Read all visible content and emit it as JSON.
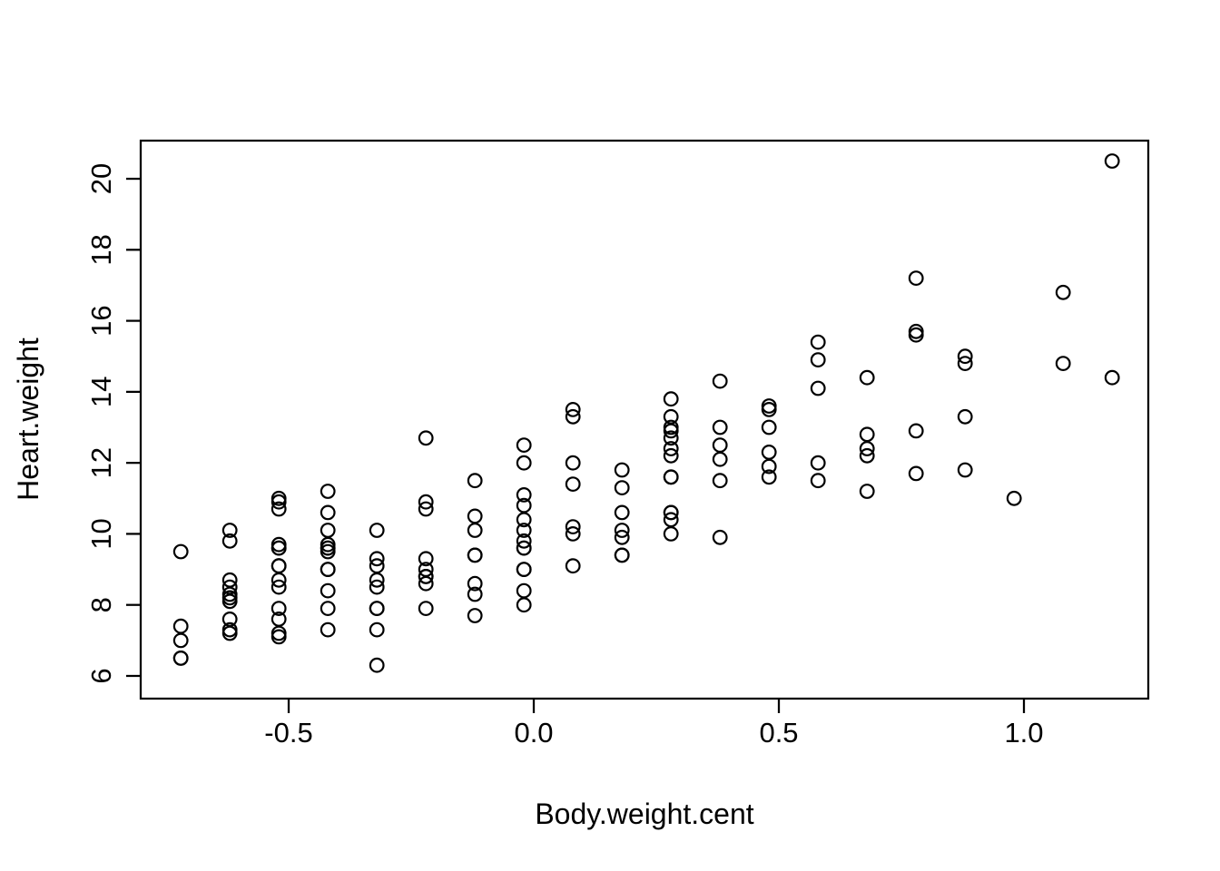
{
  "figure": {
    "background_color": "#ffffff",
    "foreground_color": "#000000"
  },
  "chart_data": {
    "type": "scatter",
    "title": "",
    "xlabel": "Body.weight.cent",
    "ylabel": "Heart.weight",
    "marker": "open-circle",
    "grid": false,
    "legend": "none",
    "xlim": [
      -0.8019,
      1.2537
    ],
    "ylim": [
      5.361,
      21.074
    ],
    "x_ticks": [
      -0.5,
      0.0,
      0.5,
      1.0
    ],
    "x_tick_labels": [
      "-0.5",
      "0.0",
      "0.5",
      "1.0"
    ],
    "y_ticks": [
      6,
      8,
      10,
      12,
      14,
      16,
      18,
      20
    ],
    "y_tick_labels": [
      "6",
      "8",
      "10",
      "12",
      "14",
      "16",
      "18",
      "20"
    ],
    "columns": [
      {
        "x": -0.72,
        "values": [
          6.5,
          6.5,
          7.0,
          7.4,
          9.5
        ]
      },
      {
        "x": -0.62,
        "values": [
          7.2,
          7.3,
          7.6,
          8.1,
          8.2,
          8.3,
          8.5,
          8.7,
          9.8,
          10.1
        ]
      },
      {
        "x": -0.52,
        "values": [
          7.1,
          7.2,
          7.6,
          7.9,
          8.5,
          8.7,
          9.1,
          9.1,
          9.6,
          9.6,
          9.7,
          10.7,
          10.9,
          11.0
        ]
      },
      {
        "x": -0.42,
        "values": [
          7.3,
          7.9,
          8.4,
          9.0,
          9.0,
          9.5,
          9.6,
          9.6,
          9.7,
          10.1,
          10.6,
          11.2
        ]
      },
      {
        "x": -0.32,
        "values": [
          6.3,
          7.3,
          7.9,
          7.9,
          8.5,
          8.7,
          9.1,
          9.3,
          10.1
        ]
      },
      {
        "x": -0.22,
        "values": [
          7.9,
          8.6,
          8.8,
          8.8,
          9.0,
          9.3,
          10.7,
          10.9,
          12.7
        ]
      },
      {
        "x": -0.12,
        "values": [
          7.7,
          8.3,
          8.6,
          9.4,
          9.4,
          10.1,
          10.5,
          11.5
        ]
      },
      {
        "x": -0.02,
        "values": [
          8.0,
          8.4,
          9.0,
          9.0,
          9.6,
          9.6,
          9.8,
          10.1,
          10.4,
          10.8,
          11.1,
          12.0,
          12.5
        ]
      },
      {
        "x": 0.08,
        "values": [
          9.1,
          10.0,
          10.2,
          11.4,
          12.0,
          13.3,
          13.5
        ]
      },
      {
        "x": 0.18,
        "values": [
          9.4,
          9.4,
          9.9,
          10.1,
          10.6,
          11.3,
          11.8
        ]
      },
      {
        "x": 0.28,
        "values": [
          10.0,
          10.4,
          10.6,
          10.6,
          11.6,
          11.6,
          12.2,
          12.4,
          12.7,
          12.9,
          13.0,
          13.3,
          13.8
        ]
      },
      {
        "x": 0.38,
        "values": [
          9.9,
          11.5,
          12.1,
          12.5,
          13.0,
          14.3
        ]
      },
      {
        "x": 0.48,
        "values": [
          11.6,
          11.9,
          12.3,
          13.0,
          13.5,
          13.6
        ]
      },
      {
        "x": 0.58,
        "values": [
          11.5,
          12.0,
          14.1,
          14.9,
          15.4
        ]
      },
      {
        "x": 0.68,
        "values": [
          11.2,
          12.2,
          12.4,
          12.8,
          14.4
        ]
      },
      {
        "x": 0.78,
        "values": [
          11.7,
          12.9,
          15.6,
          15.7,
          17.2
        ]
      },
      {
        "x": 0.88,
        "values": [
          11.8,
          13.3,
          14.8,
          15.0
        ]
      },
      {
        "x": 0.98,
        "values": [
          11.0
        ]
      },
      {
        "x": 1.08,
        "values": [
          14.8,
          16.8
        ]
      },
      {
        "x": 1.18,
        "values": [
          14.4,
          20.5
        ]
      }
    ]
  }
}
